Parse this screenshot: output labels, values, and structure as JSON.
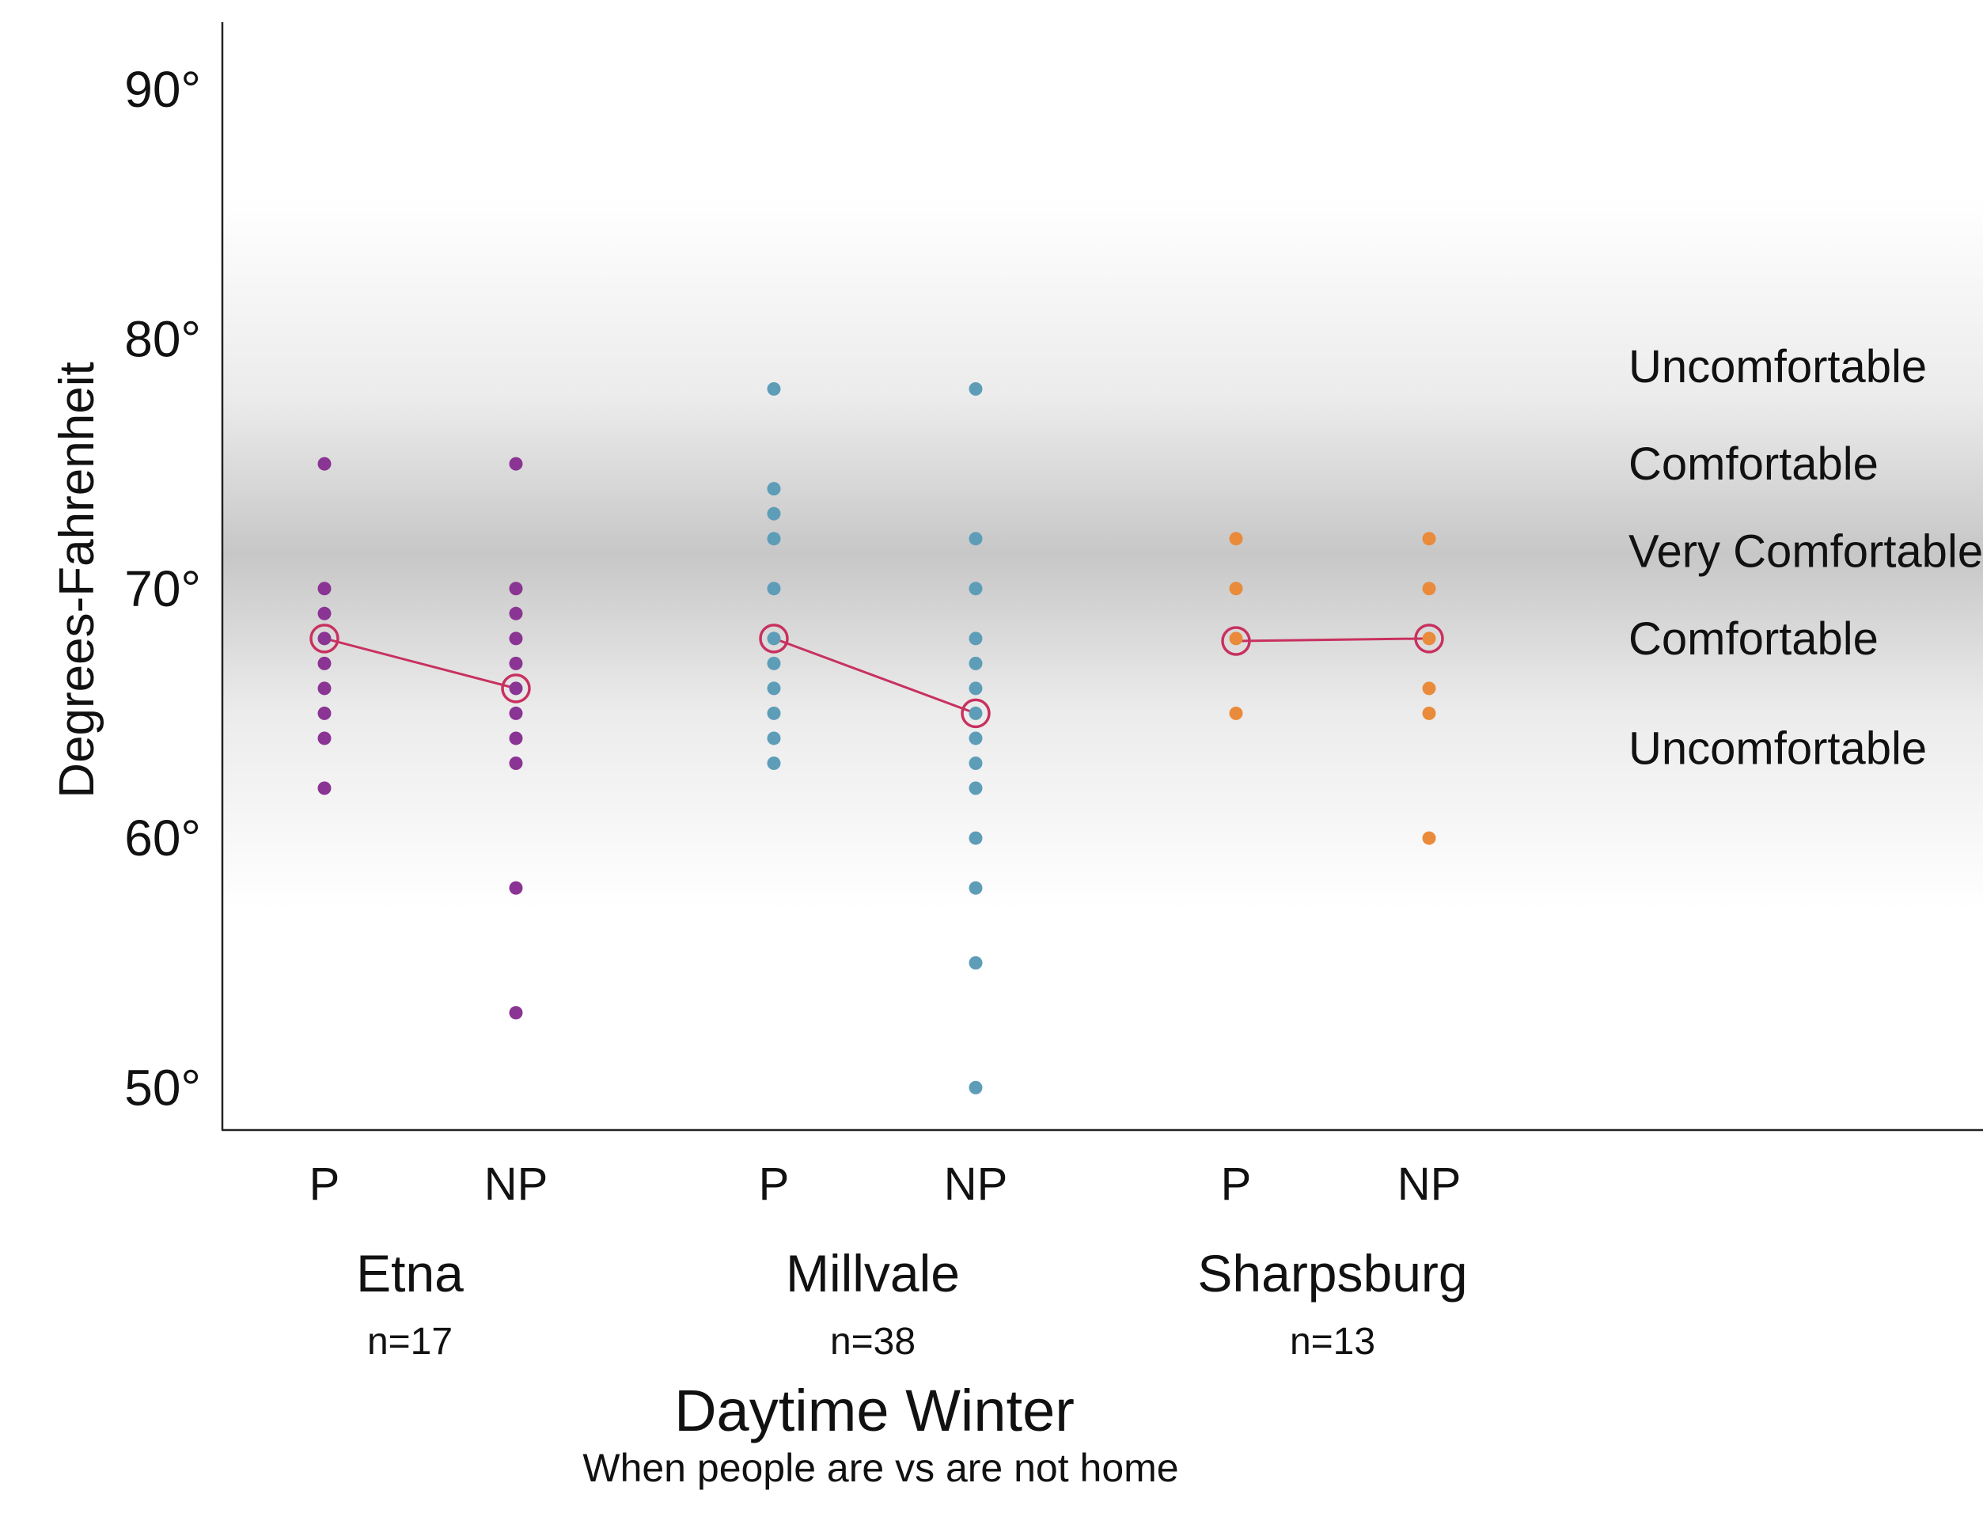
{
  "chart_data": {
    "type": "scatter",
    "title": "Daytime Winter",
    "subtitle": "When people are vs are not home",
    "ylabel": "Degrees-Fahrenheit",
    "ylim": [
      48.3,
      92.7
    ],
    "yticks": [
      {
        "value": 50,
        "label": "50°"
      },
      {
        "value": 60,
        "label": "60°"
      },
      {
        "value": 70,
        "label": "70°"
      },
      {
        "value": 80,
        "label": "80°"
      },
      {
        "value": 90,
        "label": "90°"
      }
    ],
    "comfort_labels": [
      {
        "value": 78.9,
        "label": "Uncomfortable"
      },
      {
        "value": 75.0,
        "label": "Comfortable"
      },
      {
        "value": 71.5,
        "label": "Very Comfortable"
      },
      {
        "value": 68.0,
        "label": "Comfortable"
      },
      {
        "value": 63.6,
        "label": "Uncomfortable"
      }
    ],
    "median_line_color": "#c8315f",
    "groups": [
      {
        "name": "Etna",
        "n_label": "n=17",
        "color": "#8a3493",
        "categories": [
          {
            "label": "P",
            "values": [
              75,
              70,
              69,
              68,
              67,
              66,
              65,
              64,
              62
            ],
            "median": 68
          },
          {
            "label": "NP",
            "values": [
              75,
              70,
              69,
              68,
              67,
              66,
              65,
              64,
              63,
              58,
              53
            ],
            "median": 66
          }
        ]
      },
      {
        "name": "Millvale",
        "n_label": "n=38",
        "color": "#5e9db8",
        "categories": [
          {
            "label": "P",
            "values": [
              78,
              74,
              73,
              72,
              70,
              68,
              67,
              66,
              65,
              64,
              63
            ],
            "median": 68
          },
          {
            "label": "NP",
            "values": [
              78,
              72,
              70,
              68,
              67,
              66,
              65,
              64,
              63,
              62,
              60,
              58,
              55,
              50
            ],
            "median": 65
          }
        ]
      },
      {
        "name": "Sharpsburg",
        "n_label": "n=13",
        "color": "#e98b3a",
        "categories": [
          {
            "label": "P",
            "values": [
              72,
              70,
              68,
              65
            ],
            "median": 67.9
          },
          {
            "label": "NP",
            "values": [
              72,
              70,
              68,
              66,
              65,
              60
            ],
            "median": 68
          }
        ]
      }
    ]
  }
}
